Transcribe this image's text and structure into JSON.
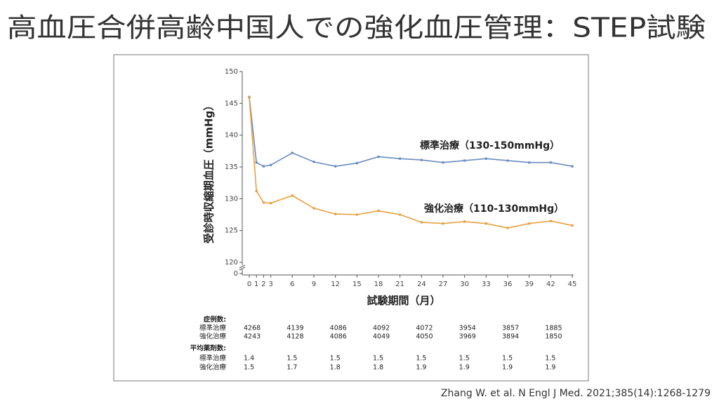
{
  "chart_data": {
    "type": "line",
    "title": "高血圧合併高齢中国人での強化血圧管理：STEP試験",
    "citation": "Zhang W. et al. N Engl J Med. 2021;385(14):1268-1279",
    "y_label": "受診時収縮期血圧（mmHg）",
    "x_label": "試験期間（月）",
    "x": [
      0,
      1,
      2,
      3,
      6,
      9,
      12,
      15,
      18,
      21,
      24,
      27,
      30,
      33,
      36,
      39,
      42,
      45
    ],
    "xlim": [
      0,
      45
    ],
    "xticks": [
      0,
      1,
      2,
      3,
      6,
      9,
      12,
      15,
      18,
      21,
      24,
      27,
      30,
      33,
      36,
      39,
      42,
      45
    ],
    "ylim": [
      120,
      150
    ],
    "yticks": [
      120,
      125,
      130,
      135,
      140,
      145,
      150
    ],
    "y_break_tick": 0,
    "series": [
      {
        "name": "標準治療（130-150mmHg）",
        "color": "#6a8cc0",
        "values": [
          146.0,
          135.7,
          135.1,
          135.3,
          137.2,
          135.8,
          135.1,
          135.6,
          136.6,
          136.3,
          136.1,
          135.7,
          136.0,
          136.3,
          136.0,
          135.7,
          135.7,
          135.1
        ]
      },
      {
        "name": "強化治療（110-130mmHg）",
        "color": "#e8a040",
        "values": [
          145.9,
          131.2,
          129.4,
          129.3,
          130.5,
          128.5,
          127.6,
          127.5,
          128.1,
          127.5,
          126.3,
          126.1,
          126.4,
          126.1,
          125.4,
          126.1,
          126.5,
          125.8
        ]
      }
    ],
    "table": {
      "columns": [
        0,
        6,
        12,
        18,
        24,
        30,
        36,
        42
      ],
      "rows": [
        {
          "label": "症例数:",
          "cells": []
        },
        {
          "label": "標準治療",
          "cells": [
            4268,
            4139,
            4086,
            4092,
            4072,
            3954,
            3857,
            1885
          ]
        },
        {
          "label": "強化治療",
          "cells": [
            4243,
            4128,
            4086,
            4049,
            4050,
            3969,
            3894,
            1850
          ]
        },
        {
          "label": "平均薬剤数:",
          "cells": []
        },
        {
          "label": "標準治療",
          "cells": [
            1.4,
            1.5,
            1.5,
            1.5,
            1.5,
            1.5,
            1.5,
            1.5
          ]
        },
        {
          "label": "強化治療",
          "cells": [
            1.5,
            1.7,
            1.8,
            1.8,
            1.9,
            1.9,
            1.9,
            1.9
          ]
        }
      ]
    }
  }
}
